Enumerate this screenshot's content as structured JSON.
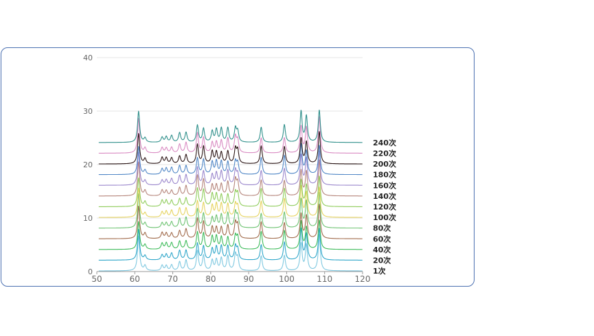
{
  "chart_data": {
    "type": "line",
    "title": "",
    "xlabel": "",
    "ylabel": "",
    "xlim": [
      50,
      120
    ],
    "ylim": [
      0,
      40
    ],
    "x_ticks": [
      "50",
      "60",
      "70",
      "80",
      "90",
      "100",
      "110",
      "120"
    ],
    "y_ticks": [
      "0",
      "10",
      "20",
      "30",
      "40"
    ],
    "grid": "horizontal",
    "offset_step": 2,
    "peaks": [
      {
        "x": 61.0,
        "h": 6.5
      },
      {
        "x": 62.7,
        "h": 1.0
      },
      {
        "x": 67.2,
        "h": 1.2
      },
      {
        "x": 68.3,
        "h": 1.2
      },
      {
        "x": 69.7,
        "h": 1.3
      },
      {
        "x": 71.8,
        "h": 1.8
      },
      {
        "x": 73.5,
        "h": 2.0
      },
      {
        "x": 76.5,
        "h": 3.8
      },
      {
        "x": 78.1,
        "h": 3.2
      },
      {
        "x": 80.4,
        "h": 2.4
      },
      {
        "x": 81.5,
        "h": 2.5
      },
      {
        "x": 82.8,
        "h": 2.6
      },
      {
        "x": 84.5,
        "h": 2.8
      },
      {
        "x": 86.5,
        "h": 3.0
      },
      {
        "x": 87.1,
        "h": 2.5
      },
      {
        "x": 93.3,
        "h": 3.4
      },
      {
        "x": 99.4,
        "h": 3.6
      },
      {
        "x": 103.8,
        "h": 5.8
      },
      {
        "x": 105.2,
        "h": 5.0
      },
      {
        "x": 108.6,
        "h": 6.8
      }
    ],
    "series": [
      {
        "name": "1次",
        "offset": 0,
        "color": "#7ec8e0"
      },
      {
        "name": "20次",
        "offset": 2,
        "color": "#2ea6c9"
      },
      {
        "name": "40次",
        "offset": 4,
        "color": "#3dbb5a"
      },
      {
        "name": "60次",
        "offset": 6,
        "color": "#a06a4a"
      },
      {
        "name": "80次",
        "offset": 8,
        "color": "#6cc270"
      },
      {
        "name": "100次",
        "offset": 10,
        "color": "#e6d35e"
      },
      {
        "name": "120次",
        "offset": 12,
        "color": "#8fcc5a"
      },
      {
        "name": "140次",
        "offset": 14,
        "color": "#b5847a"
      },
      {
        "name": "160次",
        "offset": 16,
        "color": "#9a86cc"
      },
      {
        "name": "180次",
        "offset": 18,
        "color": "#4f86c6"
      },
      {
        "name": "200次",
        "offset": 20,
        "color": "#2a1414"
      },
      {
        "name": "220次",
        "offset": 22,
        "color": "#d98ac2"
      },
      {
        "name": "240次",
        "offset": 24,
        "color": "#2e8f8a"
      }
    ]
  },
  "colors": {
    "border": "#4a6fb0",
    "grid": "#e6e6e6",
    "tick": "#666666"
  }
}
